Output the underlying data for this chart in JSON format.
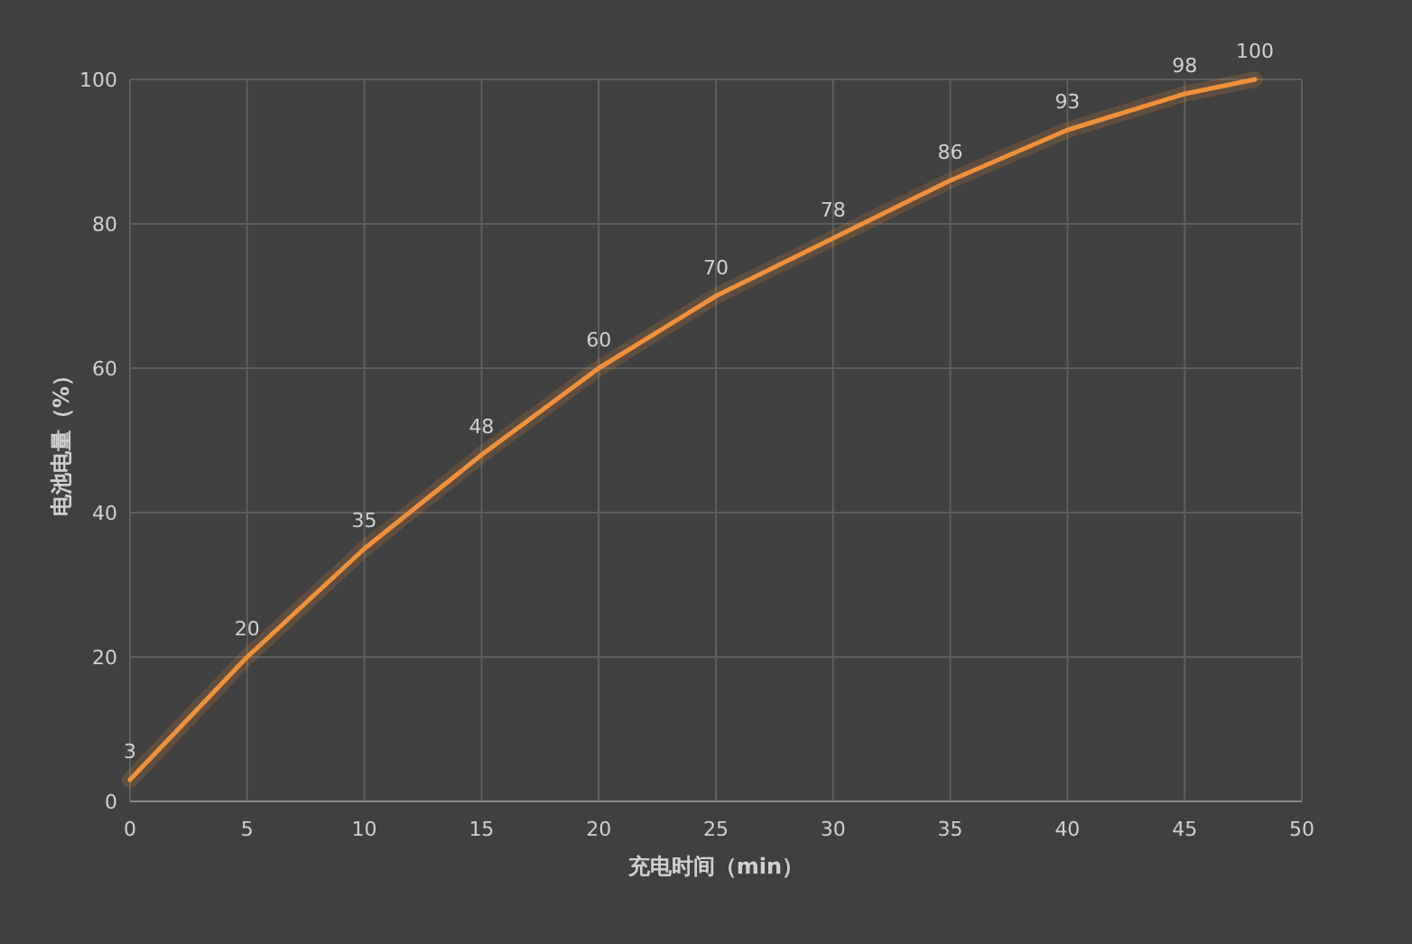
{
  "chart_data": {
    "type": "line",
    "xlabel": "充电时间（min）",
    "ylabel": "电池电量（%）",
    "x": [
      0,
      5,
      10,
      15,
      20,
      25,
      30,
      35,
      40,
      45,
      48
    ],
    "series": [
      {
        "color": "#f0913a",
        "values": [
          3,
          20,
          35,
          48,
          60,
          70,
          78,
          86,
          93,
          98,
          100
        ]
      }
    ],
    "xlim": [
      0,
      50
    ],
    "ylim": [
      0,
      100
    ],
    "xticks": [
      0,
      5,
      10,
      15,
      20,
      25,
      30,
      35,
      40,
      45,
      50
    ],
    "yticks": [
      0,
      20,
      40,
      60,
      80,
      100
    ],
    "grid": true,
    "data_labels": true
  }
}
